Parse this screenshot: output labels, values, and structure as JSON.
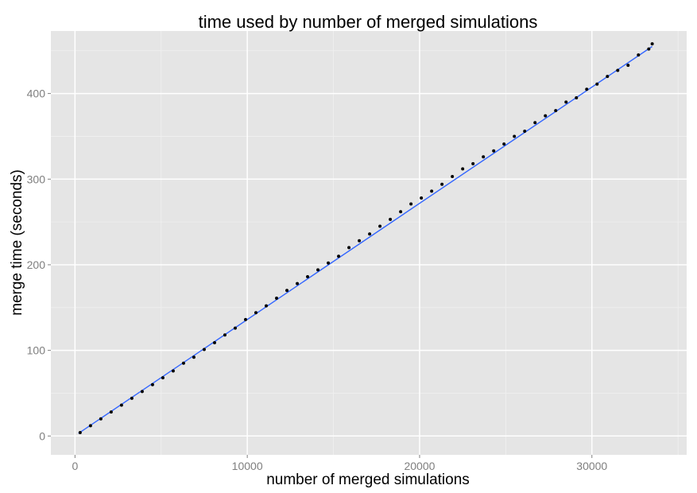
{
  "chart_data": {
    "type": "scatter",
    "title": "time used by number of merged simulations",
    "xlabel": "number of merged simulations",
    "ylabel": "merge time (seconds)",
    "xlim": [
      -1400,
      35500
    ],
    "ylim": [
      -22,
      473
    ],
    "x_ticks": [
      0,
      10000,
      20000,
      30000
    ],
    "x_tick_labels": [
      "0",
      "10000",
      "20000",
      "30000"
    ],
    "y_ticks": [
      0,
      100,
      200,
      300,
      400
    ],
    "y_tick_labels": [
      "0",
      "100",
      "200",
      "300",
      "400"
    ],
    "grid": true,
    "legend": "none",
    "colors": {
      "panel": "#e5e5e5",
      "grid_major": "#ffffff",
      "grid_minor": "#f0f0f0",
      "points": "#000000",
      "trend_line": "#3366ff"
    },
    "trend_line": {
      "type": "linear",
      "x": [
        200,
        33500
      ],
      "y": [
        3,
        455
      ]
    },
    "series": [
      {
        "x": [
          300,
          900,
          1500,
          2100,
          2700,
          3300,
          3900,
          4500,
          5100,
          5700,
          6300,
          6900,
          7500,
          8100,
          8700,
          9300,
          9900,
          10500,
          11100,
          11700,
          12300,
          12900,
          13500,
          14100,
          14700,
          15300,
          15900,
          16500,
          17100,
          17700,
          18300,
          18900,
          19500,
          20100,
          20700,
          21300,
          21900,
          22500,
          23100,
          23700,
          24300,
          24900,
          25500,
          26100,
          26700,
          27300,
          27900,
          28500,
          29100,
          29700,
          30300,
          30900,
          31500,
          32100,
          32700,
          33300,
          33500
        ],
        "y": [
          4,
          12,
          20,
          28,
          36,
          44,
          52,
          60,
          68,
          76,
          85,
          92,
          101,
          109,
          118,
          126,
          136,
          144,
          152,
          161,
          170,
          178,
          186,
          194,
          202,
          210,
          220,
          228,
          236,
          245,
          253,
          262,
          271,
          278,
          286,
          294,
          303,
          312,
          318,
          326,
          333,
          341,
          350,
          356,
          366,
          374,
          380,
          390,
          395,
          405,
          411,
          420,
          427,
          433,
          445,
          452,
          458
        ]
      }
    ]
  }
}
